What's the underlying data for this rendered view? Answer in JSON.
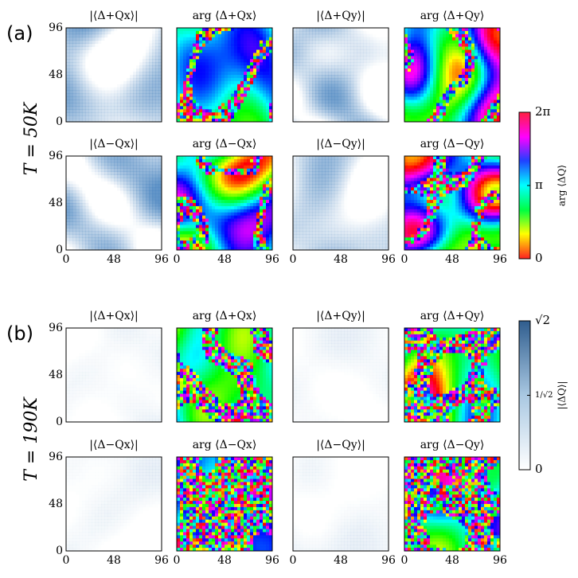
{
  "figure": {
    "groups": [
      {
        "label": "(a)",
        "temperature": "T = 50K",
        "titles": [
          [
            "|⟨Δ+Qx⟩|",
            "arg ⟨Δ+Qx⟩",
            "|⟨Δ+Qy⟩|",
            "arg ⟨Δ+Qy⟩"
          ],
          [
            "|⟨Δ−Qx⟩|",
            "arg ⟨Δ−Qx⟩",
            "|⟨Δ−Qy⟩|",
            "arg ⟨Δ−Qy⟩"
          ]
        ]
      },
      {
        "label": "(b)",
        "temperature": "T = 190K",
        "titles": [
          [
            "|⟨Δ+Qx⟩|",
            "arg ⟨Δ+Qx⟩",
            "|⟨Δ+Qy⟩|",
            "arg ⟨Δ+Qy⟩"
          ],
          [
            "|⟨Δ−Qx⟩|",
            "arg ⟨Δ−Qx⟩",
            "|⟨Δ−Qy⟩|",
            "arg ⟨Δ−Qy⟩"
          ]
        ]
      }
    ],
    "axis_ticks": [
      "0",
      "48",
      "96"
    ],
    "colorbars": [
      {
        "label": "arg ⟨ΔQ⟩",
        "ticks": [
          "0",
          "π",
          "2π"
        ]
      },
      {
        "label": "|⟨ΔQ⟩|",
        "ticks": [
          "0",
          "1/√2",
          "√2"
        ]
      }
    ]
  }
}
